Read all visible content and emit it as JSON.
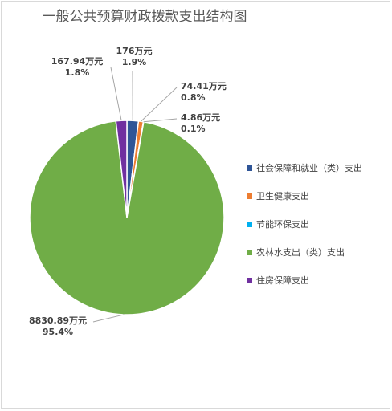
{
  "title": "一般公共预算财政拨款支出结构图",
  "chart_data": {
    "type": "pie",
    "title": "一般公共预算财政拨款支出结构图",
    "legend_position": "right",
    "slices": [
      {
        "name": "社会保障和就业（类）支出",
        "value": 176,
        "value_label": "176万元",
        "percent_label": "1.9%",
        "color": "#2f5597"
      },
      {
        "name": "卫生健康支出",
        "value": 74.41,
        "value_label": "74.41万元",
        "percent_label": "0.8%",
        "color": "#ed7d31"
      },
      {
        "name": "节能环保支出",
        "value": 4.86,
        "value_label": "4.86万元",
        "percent_label": "0.1%",
        "color": "#00b0f0"
      },
      {
        "name": "农林水支出（类）支出",
        "value": 8830.89,
        "value_label": "8830.89万元",
        "percent_label": "95.4%",
        "color": "#70ad47"
      },
      {
        "name": "住房保障支出",
        "value": 167.94,
        "value_label": "167.94万元",
        "percent_label": "1.8%",
        "color": "#7030a0"
      }
    ]
  }
}
